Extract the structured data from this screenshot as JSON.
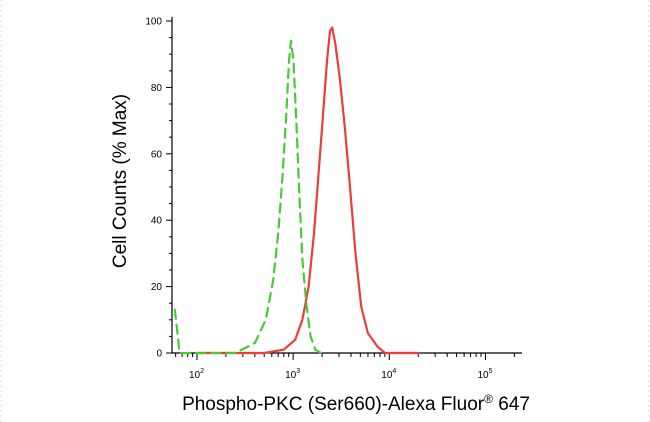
{
  "chart_data": {
    "type": "line",
    "xlabel_main": "Phospho-PKC (Ser660)-Alexa Fluor",
    "xlabel_mark": "®",
    "xlabel_end": " 647",
    "ylabel": "Cell Counts (% Max)",
    "x_scale": "log",
    "xlim": [
      55,
      240000
    ],
    "ylim": [
      0,
      100
    ],
    "y_ticks": [
      "0",
      "20",
      "40",
      "60",
      "80",
      "100"
    ],
    "x_ticks": [
      {
        "value": 100,
        "base": "10",
        "exp": "2"
      },
      {
        "value": 1000,
        "base": "10",
        "exp": "3"
      },
      {
        "value": 10000,
        "base": "10",
        "exp": "4"
      },
      {
        "value": 100000,
        "base": "10",
        "exp": "5"
      }
    ],
    "series": [
      {
        "color": "#ee3b3b",
        "style": "solid",
        "points": [
          [
            100,
            0
          ],
          [
            500,
            0
          ],
          [
            800,
            1
          ],
          [
            1050,
            4
          ],
          [
            1250,
            10
          ],
          [
            1450,
            20
          ],
          [
            1650,
            36
          ],
          [
            1850,
            55
          ],
          [
            2050,
            72
          ],
          [
            2250,
            88
          ],
          [
            2420,
            97
          ],
          [
            2550,
            98
          ],
          [
            2750,
            93
          ],
          [
            3050,
            83
          ],
          [
            3450,
            68
          ],
          [
            3900,
            50
          ],
          [
            4450,
            30
          ],
          [
            5100,
            14
          ],
          [
            6000,
            6
          ],
          [
            7500,
            2
          ],
          [
            9000,
            0
          ],
          [
            20000,
            0
          ]
        ]
      },
      {
        "color": "#44cc33",
        "style": "dashed",
        "points": [
          [
            59,
            13
          ],
          [
            66,
            0
          ],
          [
            100,
            0
          ],
          [
            250,
            0
          ],
          [
            400,
            3
          ],
          [
            520,
            10
          ],
          [
            620,
            22
          ],
          [
            700,
            36
          ],
          [
            780,
            54
          ],
          [
            850,
            72
          ],
          [
            905,
            88
          ],
          [
            950,
            94
          ],
          [
            1010,
            88
          ],
          [
            1080,
            70
          ],
          [
            1160,
            48
          ],
          [
            1250,
            28
          ],
          [
            1380,
            14
          ],
          [
            1520,
            5
          ],
          [
            1700,
            1
          ],
          [
            1950,
            0
          ]
        ]
      }
    ]
  }
}
